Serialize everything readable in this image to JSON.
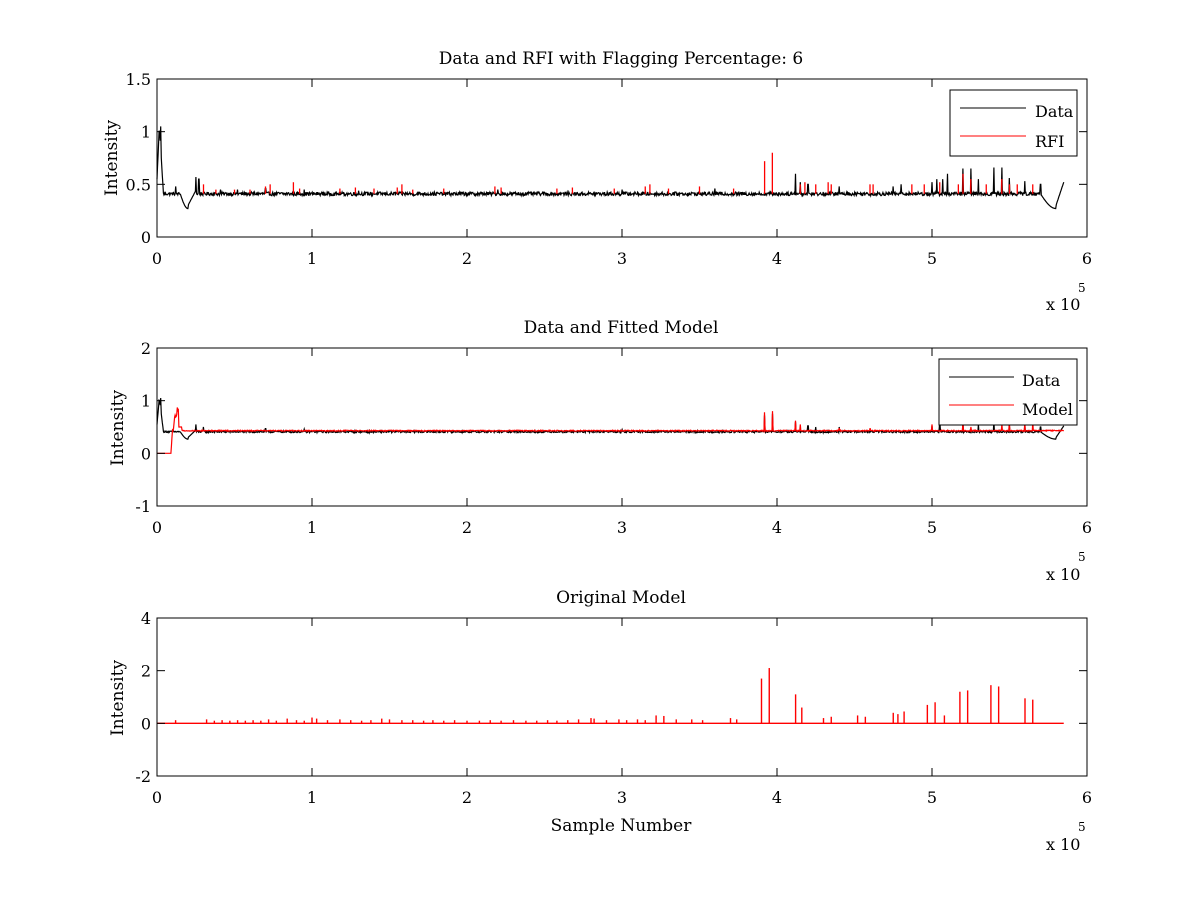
{
  "chart_data": [
    {
      "type": "line",
      "title": "Data and RFI with Flagging Percentage: 6",
      "xlabel": "",
      "ylabel": "Intensity",
      "xlim": [
        0,
        600000
      ],
      "ylim": [
        0,
        1.5
      ],
      "xticks": [
        0,
        1,
        2,
        3,
        4,
        5,
        6
      ],
      "yticks": [
        "0",
        "0.5",
        "1",
        "1.5"
      ],
      "x_multiplier": "x 10",
      "x_multiplier_exp": "5",
      "grid": false,
      "legend_position": "top-right",
      "baseline": 0.41,
      "series": [
        {
          "name": "Data",
          "color": "#000000"
        },
        {
          "name": "RFI",
          "color": "#ff0000"
        }
      ],
      "spikes": {
        "black": [
          [
            2500,
            1.05
          ],
          [
            12000,
            0.48
          ],
          [
            25000,
            0.57
          ],
          [
            27000,
            0.55
          ],
          [
            41000,
            0.45
          ],
          [
            52000,
            0.45
          ],
          [
            70000,
            0.46
          ],
          [
            95000,
            0.45
          ],
          [
            130000,
            0.44
          ],
          [
            220000,
            0.45
          ],
          [
            300000,
            0.45
          ],
          [
            360000,
            0.46
          ],
          [
            412000,
            0.6
          ],
          [
            415000,
            0.52
          ],
          [
            420000,
            0.5
          ],
          [
            440000,
            0.48
          ],
          [
            475000,
            0.48
          ],
          [
            480000,
            0.5
          ],
          [
            500000,
            0.52
          ],
          [
            503000,
            0.55
          ],
          [
            507000,
            0.55
          ],
          [
            510000,
            0.6
          ],
          [
            520000,
            0.65
          ],
          [
            525000,
            0.65
          ],
          [
            530000,
            0.55
          ],
          [
            540000,
            0.66
          ],
          [
            545000,
            0.66
          ],
          [
            550000,
            0.56
          ],
          [
            560000,
            0.53
          ],
          [
            570000,
            0.5
          ]
        ],
        "red": [
          [
            30000,
            0.5
          ],
          [
            38000,
            0.45
          ],
          [
            50000,
            0.45
          ],
          [
            60000,
            0.45
          ],
          [
            70000,
            0.48
          ],
          [
            73000,
            0.5
          ],
          [
            88000,
            0.52
          ],
          [
            92000,
            0.46
          ],
          [
            118000,
            0.46
          ],
          [
            128000,
            0.47
          ],
          [
            140000,
            0.46
          ],
          [
            155000,
            0.47
          ],
          [
            158000,
            0.5
          ],
          [
            165000,
            0.45
          ],
          [
            185000,
            0.46
          ],
          [
            218000,
            0.48
          ],
          [
            222000,
            0.47
          ],
          [
            258000,
            0.46
          ],
          [
            268000,
            0.47
          ],
          [
            295000,
            0.46
          ],
          [
            315000,
            0.48
          ],
          [
            318000,
            0.5
          ],
          [
            330000,
            0.46
          ],
          [
            350000,
            0.48
          ],
          [
            372000,
            0.46
          ],
          [
            392000,
            0.72
          ],
          [
            397000,
            0.8
          ],
          [
            415000,
            0.5
          ],
          [
            418000,
            0.52
          ],
          [
            425000,
            0.5
          ],
          [
            433000,
            0.52
          ],
          [
            435000,
            0.5
          ],
          [
            460000,
            0.5
          ],
          [
            462000,
            0.5
          ],
          [
            487000,
            0.5
          ],
          [
            495000,
            0.5
          ],
          [
            505000,
            0.52
          ],
          [
            517000,
            0.5
          ],
          [
            520000,
            0.6
          ],
          [
            525000,
            0.55
          ],
          [
            535000,
            0.5
          ],
          [
            545000,
            0.55
          ],
          [
            550000,
            0.5
          ],
          [
            555000,
            0.5
          ],
          [
            565000,
            0.5
          ]
        ]
      }
    },
    {
      "type": "line",
      "title": "Data and Fitted Model",
      "xlabel": "",
      "ylabel": "Intensity",
      "xlim": [
        0,
        600000
      ],
      "ylim": [
        -1,
        2
      ],
      "xticks": [
        0,
        1,
        2,
        3,
        4,
        5,
        6
      ],
      "yticks": [
        "-1",
        "0",
        "1",
        "2"
      ],
      "x_multiplier": "x 10",
      "x_multiplier_exp": "5",
      "grid": false,
      "legend_position": "top-right",
      "baseline": 0.41,
      "series": [
        {
          "name": "Data",
          "color": "#000000"
        },
        {
          "name": "Model",
          "color": "#ff0000"
        }
      ],
      "spikes": {
        "black": [
          [
            2500,
            1.05
          ],
          [
            25000,
            0.55
          ],
          [
            30000,
            0.5
          ],
          [
            70000,
            0.47
          ],
          [
            95000,
            0.46
          ],
          [
            300000,
            0.45
          ],
          [
            392000,
            0.72
          ],
          [
            397000,
            0.75
          ],
          [
            412000,
            0.6
          ],
          [
            420000,
            0.52
          ],
          [
            425000,
            0.5
          ],
          [
            440000,
            0.5
          ],
          [
            500000,
            0.52
          ],
          [
            505000,
            0.55
          ],
          [
            520000,
            0.6
          ],
          [
            530000,
            0.55
          ],
          [
            540000,
            0.6
          ],
          [
            550000,
            0.55
          ],
          [
            560000,
            0.55
          ],
          [
            570000,
            0.5
          ]
        ],
        "red": [
          [
            392000,
            0.78
          ],
          [
            397000,
            0.8
          ],
          [
            412000,
            0.62
          ],
          [
            415000,
            0.55
          ],
          [
            440000,
            0.48
          ],
          [
            460000,
            0.48
          ],
          [
            500000,
            0.55
          ],
          [
            520000,
            0.6
          ],
          [
            525000,
            0.5
          ],
          [
            545000,
            0.55
          ],
          [
            550000,
            0.6
          ],
          [
            560000,
            0.6
          ],
          [
            565000,
            0.6
          ]
        ]
      }
    },
    {
      "type": "line",
      "title": "Original Model",
      "xlabel": "Sample Number",
      "ylabel": "Intensity",
      "xlim": [
        0,
        600000
      ],
      "ylim": [
        -2,
        4
      ],
      "xticks": [
        0,
        1,
        2,
        3,
        4,
        5,
        6
      ],
      "yticks": [
        "-2",
        "0",
        "2",
        "4"
      ],
      "x_multiplier": "x 10",
      "x_multiplier_exp": "5",
      "grid": false,
      "baseline": 0.0,
      "series": [
        {
          "name": "",
          "color": "#ff0000"
        }
      ],
      "spikes": {
        "red": [
          [
            12000,
            0.12
          ],
          [
            32000,
            0.15
          ],
          [
            37000,
            0.1
          ],
          [
            42000,
            0.12
          ],
          [
            47000,
            0.1
          ],
          [
            52000,
            0.12
          ],
          [
            57000,
            0.1
          ],
          [
            62000,
            0.12
          ],
          [
            67000,
            0.1
          ],
          [
            72000,
            0.15
          ],
          [
            77000,
            0.1
          ],
          [
            84000,
            0.18
          ],
          [
            90000,
            0.12
          ],
          [
            95000,
            0.1
          ],
          [
            100000,
            0.22
          ],
          [
            103000,
            0.18
          ],
          [
            110000,
            0.12
          ],
          [
            118000,
            0.15
          ],
          [
            125000,
            0.12
          ],
          [
            132000,
            0.1
          ],
          [
            138000,
            0.12
          ],
          [
            145000,
            0.18
          ],
          [
            150000,
            0.15
          ],
          [
            158000,
            0.12
          ],
          [
            165000,
            0.12
          ],
          [
            172000,
            0.1
          ],
          [
            178000,
            0.12
          ],
          [
            185000,
            0.1
          ],
          [
            192000,
            0.12
          ],
          [
            200000,
            0.1
          ],
          [
            208000,
            0.1
          ],
          [
            215000,
            0.12
          ],
          [
            222000,
            0.1
          ],
          [
            230000,
            0.12
          ],
          [
            238000,
            0.1
          ],
          [
            245000,
            0.1
          ],
          [
            252000,
            0.12
          ],
          [
            258000,
            0.1
          ],
          [
            265000,
            0.12
          ],
          [
            272000,
            0.15
          ],
          [
            280000,
            0.2
          ],
          [
            282000,
            0.18
          ],
          [
            290000,
            0.12
          ],
          [
            298000,
            0.15
          ],
          [
            303000,
            0.12
          ],
          [
            310000,
            0.15
          ],
          [
            315000,
            0.12
          ],
          [
            322000,
            0.3
          ],
          [
            327000,
            0.28
          ],
          [
            335000,
            0.15
          ],
          [
            345000,
            0.15
          ],
          [
            352000,
            0.12
          ],
          [
            370000,
            0.2
          ],
          [
            374000,
            0.15
          ],
          [
            390000,
            1.7
          ],
          [
            395000,
            2.1
          ],
          [
            412000,
            1.1
          ],
          [
            416000,
            0.6
          ],
          [
            430000,
            0.2
          ],
          [
            435000,
            0.25
          ],
          [
            452000,
            0.3
          ],
          [
            457000,
            0.25
          ],
          [
            475000,
            0.4
          ],
          [
            478000,
            0.35
          ],
          [
            482000,
            0.45
          ],
          [
            497000,
            0.7
          ],
          [
            502000,
            0.8
          ],
          [
            508000,
            0.3
          ],
          [
            518000,
            1.2
          ],
          [
            523000,
            1.25
          ],
          [
            538000,
            1.45
          ],
          [
            543000,
            1.4
          ],
          [
            560000,
            0.95
          ],
          [
            565000,
            0.9
          ]
        ]
      }
    }
  ]
}
